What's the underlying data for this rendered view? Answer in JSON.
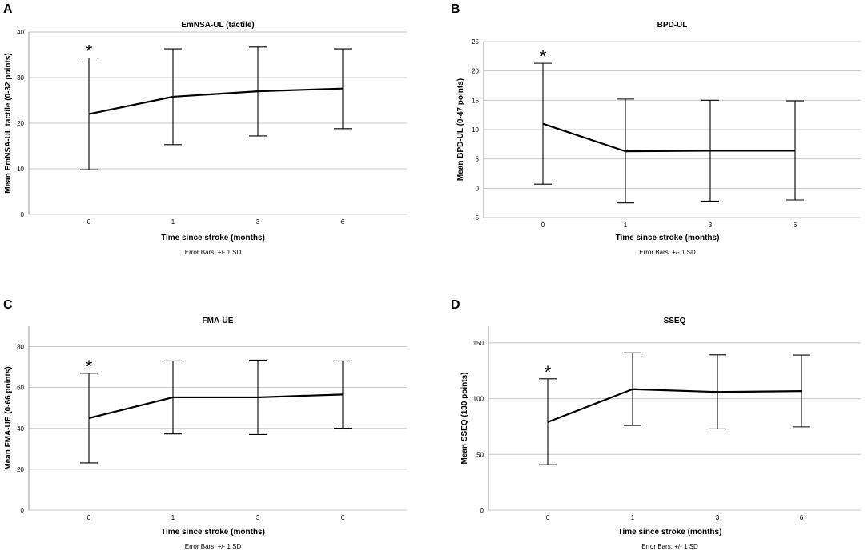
{
  "chart_data": [
    {
      "panel": "A",
      "type": "line",
      "title": "EmNSA-UL (tactile)",
      "xlabel": "Time since stroke (months)",
      "ylabel": "Mean EmNSA-UL tactile (0-32 points)",
      "note": "Error Bars: +/- 1 SD",
      "categories": [
        "0",
        "1",
        "3",
        "6"
      ],
      "series": [
        {
          "name": "Mean",
          "values": [
            22.0,
            25.8,
            27.0,
            27.6
          ]
        }
      ],
      "error_low": [
        9.8,
        15.3,
        17.2,
        18.8
      ],
      "error_high": [
        34.3,
        36.3,
        36.7,
        36.3
      ],
      "ylim": [
        0,
        40
      ],
      "yticks": [
        0,
        10,
        20,
        30,
        40
      ],
      "annotation": "*",
      "annotation_index": 0
    },
    {
      "panel": "B",
      "type": "line",
      "title": "BPD-UL",
      "xlabel": "Time since stroke (months)",
      "ylabel": "Mean BPD-UL (0-47 points)",
      "note": "Error Bars: +/- 1 SD",
      "categories": [
        "0",
        "1",
        "3",
        "6"
      ],
      "series": [
        {
          "name": "Mean",
          "values": [
            11.0,
            6.3,
            6.4,
            6.4
          ]
        }
      ],
      "error_low": [
        0.7,
        -2.5,
        -2.2,
        -2.0
      ],
      "error_high": [
        21.3,
        15.2,
        15.0,
        14.9
      ],
      "ylim": [
        -5,
        25
      ],
      "yticks": [
        -5,
        0,
        5,
        10,
        15,
        20,
        25
      ],
      "annotation": "*",
      "annotation_index": 0
    },
    {
      "panel": "C",
      "type": "line",
      "title": "FMA-UE",
      "xlabel": "Time since stroke (months)",
      "ylabel": "Mean FMA-UE (0-66 points)",
      "note": "Error Bars: +/- 1 SD",
      "categories": [
        "0",
        "1",
        "3",
        "6"
      ],
      "series": [
        {
          "name": "Mean",
          "values": [
            45.0,
            55.2,
            55.2,
            56.6
          ]
        }
      ],
      "error_low": [
        23.1,
        37.3,
        37.0,
        40.1
      ],
      "error_high": [
        67.0,
        73.0,
        73.4,
        73.0
      ],
      "ylim": [
        0,
        90
      ],
      "yticks": [
        0,
        20,
        40,
        60,
        80
      ],
      "annotation": "*",
      "annotation_index": 0
    },
    {
      "panel": "D",
      "type": "line",
      "title": "SSEQ",
      "xlabel": "Time since stroke (months)",
      "ylabel": "Mean SSEQ (130 points)",
      "note": "Error Bars: +/- 1 SD",
      "categories": [
        "0",
        "1",
        "3",
        "6"
      ],
      "series": [
        {
          "name": "Mean",
          "values": [
            79.0,
            108.5,
            106.0,
            106.8
          ]
        }
      ],
      "error_low": [
        40.8,
        76.0,
        72.9,
        74.7
      ],
      "error_high": [
        117.8,
        141.1,
        139.3,
        139.1
      ],
      "ylim": [
        0,
        165
      ],
      "yticks": [
        0,
        50,
        100,
        150
      ],
      "annotation": "*",
      "annotation_index": 0
    }
  ]
}
